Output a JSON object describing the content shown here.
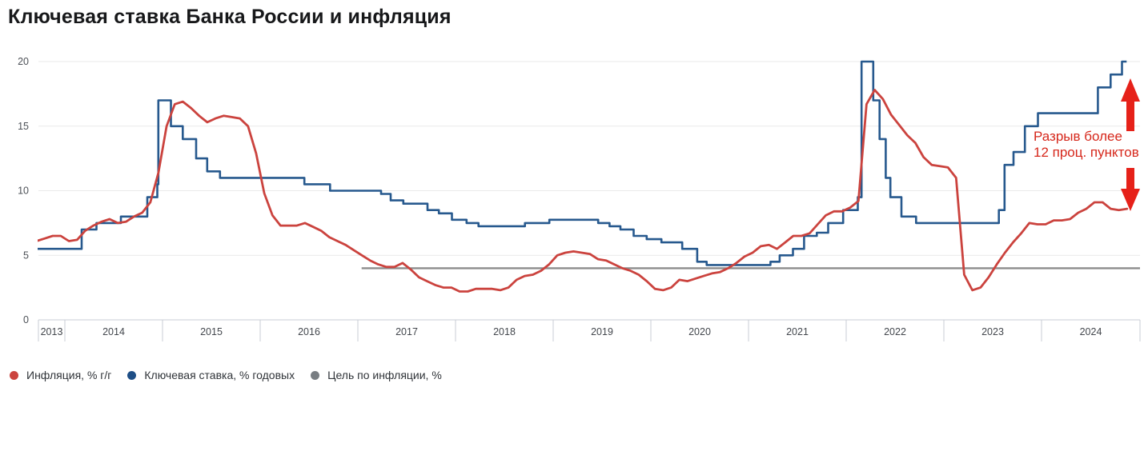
{
  "title": "Ключевая ставка Банка России и инфляция",
  "colors": {
    "inflation_line": "#cb433e",
    "key_rate_line": "#27598e",
    "target_line": "#8c8c8c",
    "annotation_text": "#d6271b",
    "annotation_arrow": "#e62119",
    "grid": "#e9e9e9",
    "axis": "#c9ced4",
    "y_tick_label": "#4d5157",
    "x_tick_label": "#43474d",
    "title_text": "#17181a"
  },
  "annotation": {
    "line1": "Разрыв более",
    "line2": "12 проц. пунктов"
  },
  "legend": {
    "items": [
      {
        "label": "Инфляция, % г/г",
        "color": "#cb433e"
      },
      {
        "label": "Ключевая ставка, % годовых",
        "color": "#1e4e86"
      },
      {
        "label": "Цель по инфляции, %",
        "color": "#787d82"
      }
    ]
  },
  "chart_data": {
    "type": "line",
    "title": "Ключевая ставка Банка России и инфляция",
    "ylim": [
      0,
      20
    ],
    "yticks": [
      0,
      5,
      10,
      15,
      20
    ],
    "x_year_labels": [
      "2013",
      "2014",
      "2015",
      "2016",
      "2017",
      "2018",
      "2019",
      "2020",
      "2021",
      "2022",
      "2023",
      "2024"
    ],
    "x_range": [
      "2013-09",
      "2024-11"
    ],
    "grid": "horizontal",
    "legend_position": "bottom",
    "series": [
      {
        "name": "Инфляция, % г/г",
        "kind": "smooth-line",
        "sampling": "monthly",
        "start": "2013-09",
        "values": [
          6.1,
          6.3,
          6.5,
          6.5,
          6.1,
          6.2,
          6.9,
          7.3,
          7.6,
          7.8,
          7.5,
          7.6,
          8.0,
          8.3,
          9.1,
          11.4,
          15.0,
          16.7,
          16.9,
          16.4,
          15.8,
          15.3,
          15.6,
          15.8,
          15.7,
          15.6,
          15.0,
          12.9,
          9.8,
          8.1,
          7.3,
          7.3,
          7.3,
          7.5,
          7.2,
          6.9,
          6.4,
          6.1,
          5.8,
          5.4,
          5.0,
          4.6,
          4.3,
          4.1,
          4.1,
          4.4,
          3.9,
          3.3,
          3.0,
          2.7,
          2.5,
          2.5,
          2.2,
          2.2,
          2.4,
          2.4,
          2.4,
          2.3,
          2.5,
          3.1,
          3.4,
          3.5,
          3.8,
          4.3,
          5.0,
          5.2,
          5.3,
          5.2,
          5.1,
          4.7,
          4.6,
          4.3,
          4.0,
          3.8,
          3.5,
          3.0,
          2.4,
          2.3,
          2.5,
          3.1,
          3.0,
          3.2,
          3.4,
          3.6,
          3.7,
          4.0,
          4.4,
          4.9,
          5.2,
          5.7,
          5.8,
          5.5,
          6.0,
          6.5,
          6.5,
          6.7,
          7.4,
          8.1,
          8.4,
          8.4,
          8.7,
          9.2,
          16.7,
          17.8,
          17.1,
          15.9,
          15.1,
          14.3,
          13.7,
          12.6,
          12.0,
          11.9,
          11.8,
          11.0,
          3.5,
          2.3,
          2.5,
          3.3,
          4.3,
          5.2,
          6.0,
          6.7,
          7.5,
          7.4,
          7.4,
          7.7,
          7.7,
          7.8,
          8.3,
          8.6,
          9.1,
          9.1,
          8.6,
          8.5,
          8.6
        ]
      },
      {
        "name": "Ключевая ставка, % годовых",
        "kind": "step-line",
        "initial": [
          "2013-09-13",
          5.5
        ],
        "changes": [
          [
            "2014-03-03",
            7.0
          ],
          [
            "2014-04-28",
            7.5
          ],
          [
            "2014-07-28",
            8.0
          ],
          [
            "2014-11-05",
            9.5
          ],
          [
            "2014-12-12",
            10.5
          ],
          [
            "2014-12-16",
            17.0
          ],
          [
            "2015-02-02",
            15.0
          ],
          [
            "2015-03-16",
            14.0
          ],
          [
            "2015-05-05",
            12.5
          ],
          [
            "2015-06-16",
            11.5
          ],
          [
            "2015-08-03",
            11.0
          ],
          [
            "2016-06-14",
            10.5
          ],
          [
            "2016-09-19",
            10.0
          ],
          [
            "2017-03-27",
            9.75
          ],
          [
            "2017-05-02",
            9.25
          ],
          [
            "2017-06-19",
            9.0
          ],
          [
            "2017-09-18",
            8.5
          ],
          [
            "2017-10-30",
            8.25
          ],
          [
            "2017-12-18",
            7.75
          ],
          [
            "2018-02-12",
            7.5
          ],
          [
            "2018-03-26",
            7.25
          ],
          [
            "2018-09-17",
            7.5
          ],
          [
            "2018-12-17",
            7.75
          ],
          [
            "2019-06-17",
            7.5
          ],
          [
            "2019-07-29",
            7.25
          ],
          [
            "2019-09-09",
            7.0
          ],
          [
            "2019-10-28",
            6.5
          ],
          [
            "2019-12-16",
            6.25
          ],
          [
            "2020-02-10",
            6.0
          ],
          [
            "2020-04-27",
            5.5
          ],
          [
            "2020-06-22",
            4.5
          ],
          [
            "2020-07-27",
            4.25
          ],
          [
            "2021-03-22",
            4.5
          ],
          [
            "2021-04-26",
            5.0
          ],
          [
            "2021-06-15",
            5.5
          ],
          [
            "2021-07-26",
            6.5
          ],
          [
            "2021-09-13",
            6.75
          ],
          [
            "2021-10-25",
            7.5
          ],
          [
            "2021-12-20",
            8.5
          ],
          [
            "2022-02-14",
            9.5
          ],
          [
            "2022-02-28",
            20.0
          ],
          [
            "2022-04-11",
            17.0
          ],
          [
            "2022-05-04",
            14.0
          ],
          [
            "2022-05-27",
            11.0
          ],
          [
            "2022-06-14",
            9.5
          ],
          [
            "2022-07-25",
            8.0
          ],
          [
            "2022-09-19",
            7.5
          ],
          [
            "2023-07-24",
            8.5
          ],
          [
            "2023-08-15",
            12.0
          ],
          [
            "2023-09-18",
            13.0
          ],
          [
            "2023-10-30",
            15.0
          ],
          [
            "2023-12-18",
            16.0
          ],
          [
            "2024-07-29",
            18.0
          ],
          [
            "2024-09-16",
            19.0
          ],
          [
            "2024-10-28",
            21.0
          ]
        ],
        "end": "2024-11-15",
        "note_clipped_at_axis_max": true
      },
      {
        "name": "Цель по инфляции, %",
        "kind": "hline",
        "value": 4,
        "from": "2017-01",
        "to": "2024-11"
      }
    ],
    "annotations": [
      {
        "text": "Разрыв более 12 проц. пунктов",
        "position": "right",
        "arrows": [
          "up",
          "down"
        ]
      }
    ]
  }
}
